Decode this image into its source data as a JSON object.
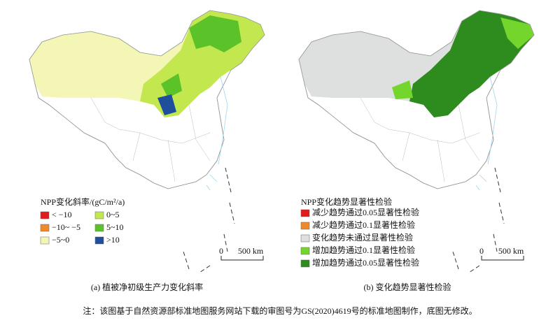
{
  "panels": [
    {
      "legend": {
        "title": "NPP变化斜率/(gC/m²/a)",
        "items": [
          {
            "label": "< −10",
            "color": "#e31a1c"
          },
          {
            "label": "−10~ −5",
            "color": "#ef8a2a"
          },
          {
            "label": "−5~0",
            "color": "#f3f6b4"
          },
          {
            "label": "0~5",
            "color": "#c3e84f"
          },
          {
            "label": "5~10",
            "color": "#5cc22a"
          },
          {
            "label": ">10",
            "color": "#1f4e9c"
          }
        ]
      },
      "scale": {
        "zero": "0",
        "label": "500 km"
      },
      "caption": "(a) 植被净初级生产力变化斜率"
    },
    {
      "legend": {
        "title": "NPP变化趋势显著性检验",
        "items": [
          {
            "label": "减少趋势通过0.05显著性检验",
            "color": "#e31a1c"
          },
          {
            "label": "减少趋势通过0.1显著性检验",
            "color": "#ef8a2a"
          },
          {
            "label": "变化趋势未通过显著性检验",
            "color": "#dde0de"
          },
          {
            "label": "增加趋势通过0.1显著性检验",
            "color": "#74d62c"
          },
          {
            "label": "增加趋势通过0.05显著性检验",
            "color": "#2e8b1e"
          }
        ]
      },
      "scale": {
        "zero": "0",
        "label": "500 km"
      },
      "caption": "(b) 变化趋势显著性检验"
    }
  ],
  "note": "注：该图基于自然资源部标准地图服务网站下载的审图号为GS(2020)4619号的标准地图制作，底图无修改。"
}
